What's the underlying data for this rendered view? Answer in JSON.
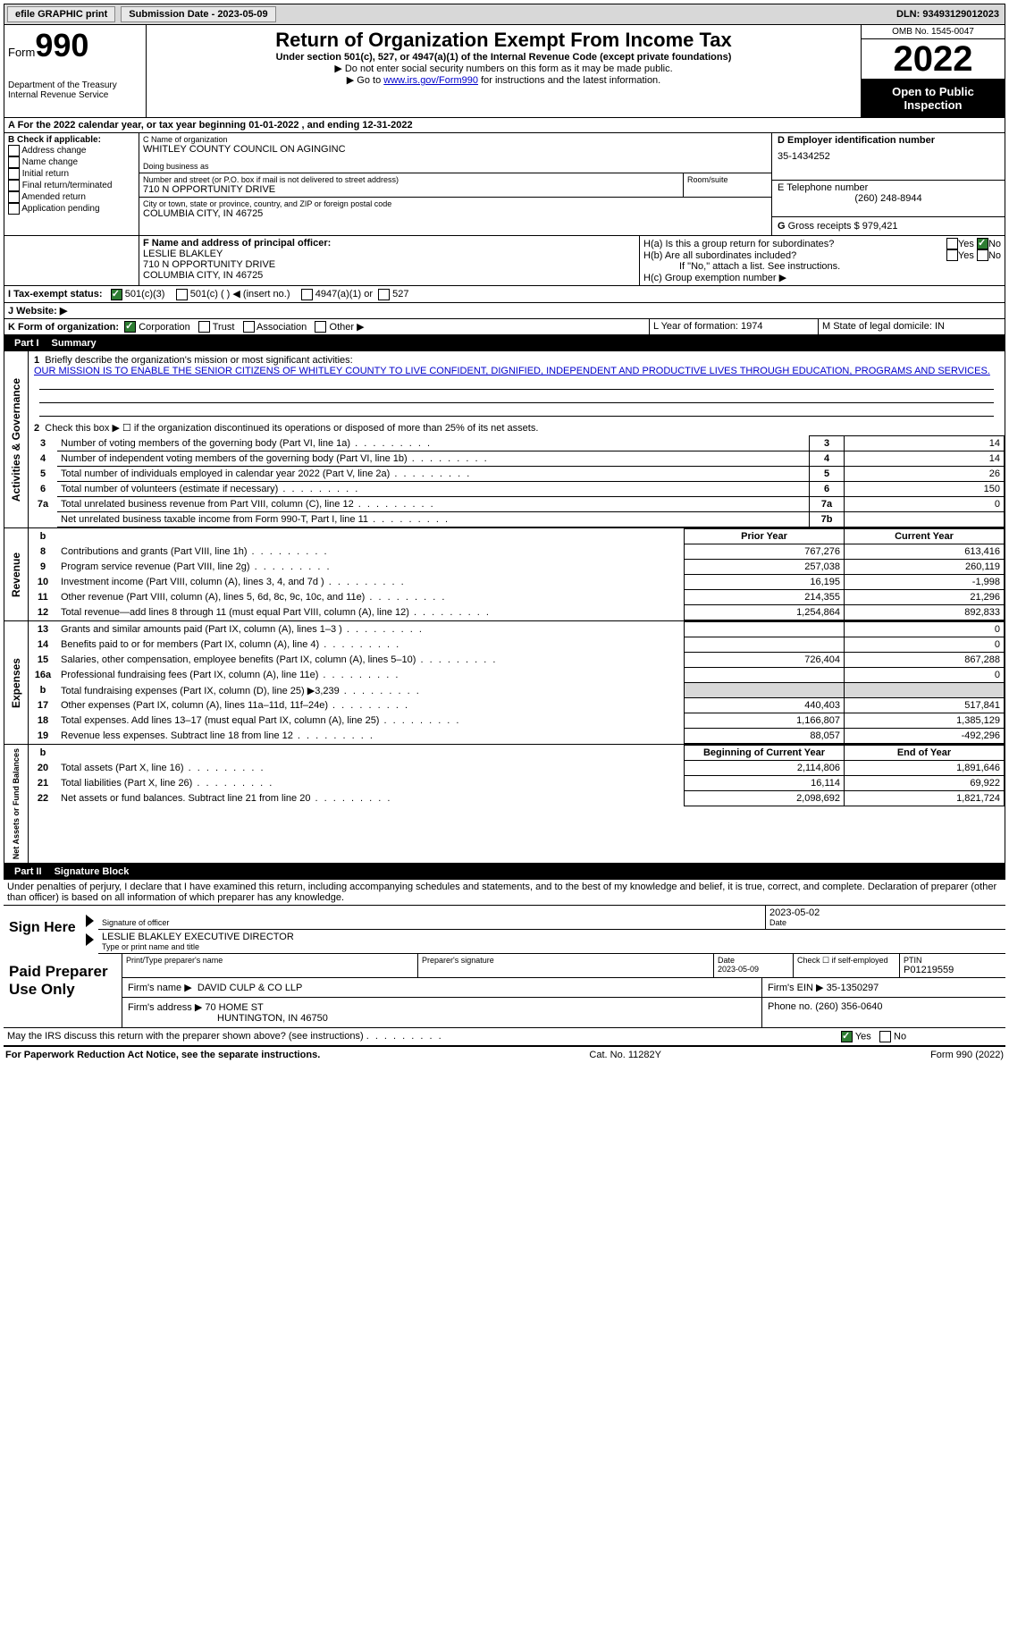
{
  "topbar": {
    "efile": "efile GRAPHIC print",
    "submission_label": "Submission Date - 2023-05-09",
    "dln": "DLN: 93493129012023"
  },
  "header": {
    "form_word": "Form",
    "form_num": "990",
    "dept": "Department of the Treasury",
    "irs": "Internal Revenue Service",
    "title": "Return of Organization Exempt From Income Tax",
    "sub": "Under section 501(c), 527, or 4947(a)(1) of the Internal Revenue Code (except private foundations)",
    "note1": "▶ Do not enter social security numbers on this form as it may be made public.",
    "note2_pre": "▶ Go to ",
    "note2_link": "www.irs.gov/Form990",
    "note2_post": " for instructions and the latest information.",
    "omb": "OMB No. 1545-0047",
    "year": "2022",
    "inspection": "Open to Public Inspection"
  },
  "lineA": "A For the 2022 calendar year, or tax year beginning 01-01-2022   , and ending 12-31-2022",
  "boxB": {
    "title": "B Check if applicable:",
    "opts": [
      "Address change",
      "Name change",
      "Initial return",
      "Final return/terminated",
      "Amended return",
      "Application pending"
    ]
  },
  "boxC": {
    "label_name": "C Name of organization",
    "org": "WHITLEY COUNTY COUNCIL ON AGINGINC",
    "dba_label": "Doing business as",
    "addr_label": "Number and street (or P.O. box if mail is not delivered to street address)",
    "room_label": "Room/suite",
    "addr": "710 N OPPORTUNITY DRIVE",
    "city_label": "City or town, state or province, country, and ZIP or foreign postal code",
    "city": "COLUMBIA CITY, IN  46725"
  },
  "boxD": {
    "label": "D Employer identification number",
    "val": "35-1434252"
  },
  "boxE": {
    "label": "E Telephone number",
    "val": "(260) 248-8944"
  },
  "boxG": {
    "label": "G",
    "text": "Gross receipts $ 979,421"
  },
  "boxF": {
    "label": "F  Name and address of principal officer:",
    "name": "LESLIE BLAKLEY",
    "addr1": "710 N OPPORTUNITY DRIVE",
    "addr2": "COLUMBIA CITY, IN  46725"
  },
  "boxH": {
    "a": "H(a)  Is this a group return for subordinates?",
    "b": "H(b)  Are all subordinates included?",
    "b_note": "If \"No,\" attach a list. See instructions.",
    "c": "H(c)  Group exemption number ▶",
    "yes": "Yes",
    "no": "No"
  },
  "boxI": {
    "label": "I   Tax-exempt status:",
    "o1": "501(c)(3)",
    "o2": "501(c) (  ) ◀ (insert no.)",
    "o3": "4947(a)(1) or",
    "o4": "527"
  },
  "boxJ": {
    "label": "J   Website: ▶"
  },
  "boxK": {
    "label": "K Form of organization:",
    "o1": "Corporation",
    "o2": "Trust",
    "o3": "Association",
    "o4": "Other ▶"
  },
  "boxL": {
    "label": "L Year of formation: 1974"
  },
  "boxM": {
    "label": "M State of legal domicile: IN"
  },
  "part1": {
    "num": "Part I",
    "title": "Summary"
  },
  "s1": {
    "l1a": "Briefly describe the organization's mission or most significant activities:",
    "mission": "OUR MISSION IS TO ENABLE THE SENIOR CITIZENS OF WHITLEY COUNTY TO LIVE CONFIDENT, DIGNIFIED, INDEPENDENT AND PRODUCTIVE LIVES THROUGH EDUCATION, PROGRAMS AND SERVICES.",
    "l2": "Check this box ▶ ☐ if the organization discontinued its operations or disposed of more than 25% of its net assets.",
    "rows": [
      {
        "n": "3",
        "t": "Number of voting members of the governing body (Part VI, line 1a)",
        "k": "3",
        "v": "14"
      },
      {
        "n": "4",
        "t": "Number of independent voting members of the governing body (Part VI, line 1b)",
        "k": "4",
        "v": "14"
      },
      {
        "n": "5",
        "t": "Total number of individuals employed in calendar year 2022 (Part V, line 2a)",
        "k": "5",
        "v": "26"
      },
      {
        "n": "6",
        "t": "Total number of volunteers (estimate if necessary)",
        "k": "6",
        "v": "150"
      },
      {
        "n": "7a",
        "t": "Total unrelated business revenue from Part VIII, column (C), line 12",
        "k": "7a",
        "v": "0"
      },
      {
        "n": "",
        "t": "Net unrelated business taxable income from Form 990-T, Part I, line 11",
        "k": "7b",
        "v": ""
      }
    ],
    "hdr_prior": "Prior Year",
    "hdr_curr": "Current Year",
    "rev": [
      {
        "n": "8",
        "t": "Contributions and grants (Part VIII, line 1h)",
        "p": "767,276",
        "c": "613,416"
      },
      {
        "n": "9",
        "t": "Program service revenue (Part VIII, line 2g)",
        "p": "257,038",
        "c": "260,119"
      },
      {
        "n": "10",
        "t": "Investment income (Part VIII, column (A), lines 3, 4, and 7d )",
        "p": "16,195",
        "c": "-1,998"
      },
      {
        "n": "11",
        "t": "Other revenue (Part VIII, column (A), lines 5, 6d, 8c, 9c, 10c, and 11e)",
        "p": "214,355",
        "c": "21,296"
      },
      {
        "n": "12",
        "t": "Total revenue—add lines 8 through 11 (must equal Part VIII, column (A), line 12)",
        "p": "1,254,864",
        "c": "892,833"
      }
    ],
    "exp": [
      {
        "n": "13",
        "t": "Grants and similar amounts paid (Part IX, column (A), lines 1–3 )",
        "p": "",
        "c": "0"
      },
      {
        "n": "14",
        "t": "Benefits paid to or for members (Part IX, column (A), line 4)",
        "p": "",
        "c": "0"
      },
      {
        "n": "15",
        "t": "Salaries, other compensation, employee benefits (Part IX, column (A), lines 5–10)",
        "p": "726,404",
        "c": "867,288"
      },
      {
        "n": "16a",
        "t": "Professional fundraising fees (Part IX, column (A), line 11e)",
        "p": "",
        "c": "0"
      },
      {
        "n": "b",
        "t": "Total fundraising expenses (Part IX, column (D), line 25) ▶3,239",
        "p": "shade",
        "c": "shade"
      },
      {
        "n": "17",
        "t": "Other expenses (Part IX, column (A), lines 11a–11d, 11f–24e)",
        "p": "440,403",
        "c": "517,841"
      },
      {
        "n": "18",
        "t": "Total expenses. Add lines 13–17 (must equal Part IX, column (A), line 25)",
        "p": "1,166,807",
        "c": "1,385,129"
      },
      {
        "n": "19",
        "t": "Revenue less expenses. Subtract line 18 from line 12",
        "p": "88,057",
        "c": "-492,296"
      }
    ],
    "hdr_begin": "Beginning of Current Year",
    "hdr_end": "End of Year",
    "net": [
      {
        "n": "20",
        "t": "Total assets (Part X, line 16)",
        "p": "2,114,806",
        "c": "1,891,646"
      },
      {
        "n": "21",
        "t": "Total liabilities (Part X, line 26)",
        "p": "16,114",
        "c": "69,922"
      },
      {
        "n": "22",
        "t": "Net assets or fund balances. Subtract line 21 from line 20",
        "p": "2,098,692",
        "c": "1,821,724"
      }
    ],
    "vlabels": {
      "gov": "Activities & Governance",
      "rev": "Revenue",
      "exp": "Expenses",
      "net": "Net Assets or Fund Balances"
    }
  },
  "part2": {
    "num": "Part II",
    "title": "Signature Block"
  },
  "sig": {
    "pen": "Under penalties of perjury, I declare that I have examined this return, including accompanying schedules and statements, and to the best of my knowledge and belief, it is true, correct, and complete. Declaration of preparer (other than officer) is based on all information of which preparer has any knowledge.",
    "sign_here": "Sign Here",
    "sig_officer": "Signature of officer",
    "date": "Date",
    "date_val": "2023-05-02",
    "name_title": "LESLIE BLAKLEY  EXECUTIVE DIRECTOR",
    "type_name": "Type or print name and title",
    "paid": "Paid Preparer Use Only",
    "p_name_lbl": "Print/Type preparer's name",
    "p_sig_lbl": "Preparer's signature",
    "p_date_lbl": "Date",
    "p_date": "2023-05-09",
    "check_self": "Check ☐ if self-employed",
    "ptin_lbl": "PTIN",
    "ptin": "P01219559",
    "firm_name_lbl": "Firm's name    ▶",
    "firm_name": "DAVID CULP & CO LLP",
    "firm_ein_lbl": "Firm's EIN ▶",
    "firm_ein": "35-1350297",
    "firm_addr_lbl": "Firm's address ▶",
    "firm_addr1": "70 HOME ST",
    "firm_addr2": "HUNTINGTON, IN  46750",
    "phone_lbl": "Phone no.",
    "phone": "(260) 356-0640",
    "discuss": "May the IRS discuss this return with the preparer shown above? (see instructions)",
    "yes": "Yes",
    "no": "No"
  },
  "footer": {
    "left": "For Paperwork Reduction Act Notice, see the separate instructions.",
    "mid": "Cat. No. 11282Y",
    "right": "Form 990 (2022)"
  }
}
